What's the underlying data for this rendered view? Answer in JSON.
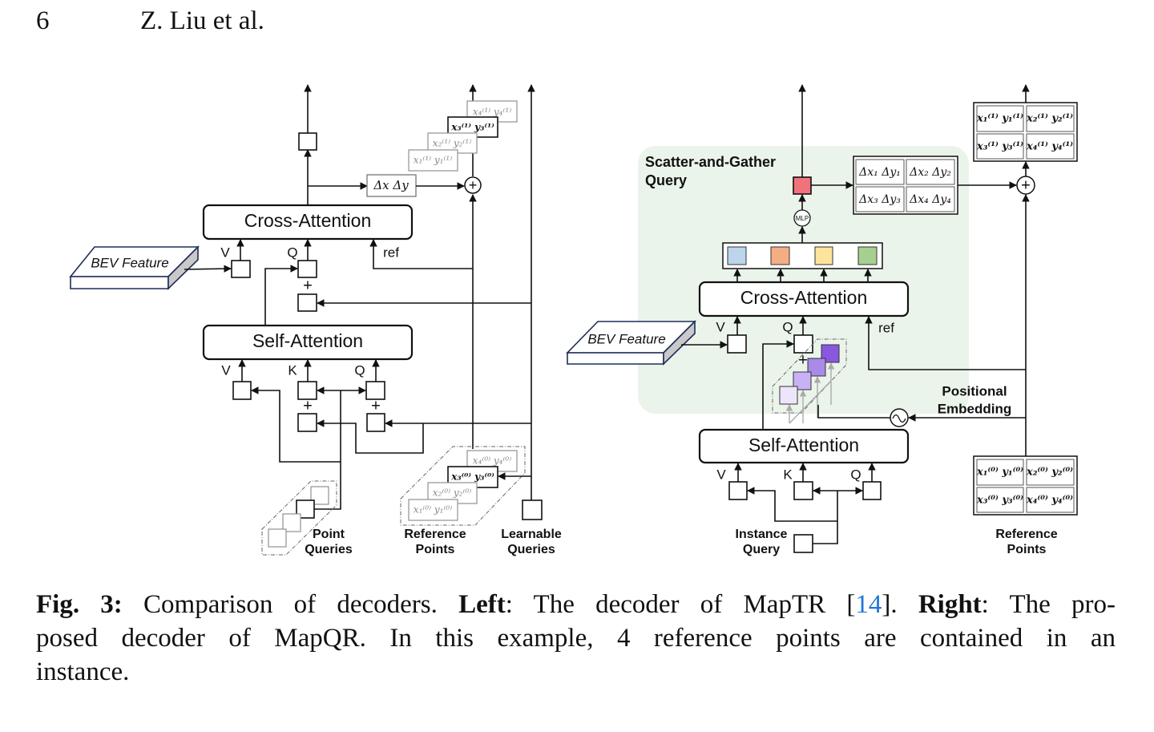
{
  "header": {
    "page_number": "6",
    "running_title": "Z. Liu et al."
  },
  "figure": {
    "left": {
      "cross_attention": "Cross-Attention",
      "self_attention": "Self-Attention",
      "bev_feature": "BEV Feature",
      "v": "V",
      "q": "Q",
      "k": "K",
      "ref": "ref",
      "plus": "+",
      "delta": "Δx  Δy",
      "points_out": [
        "x₁⁽¹⁾ y₁⁽¹⁾",
        "x₂⁽¹⁾ y₂⁽¹⁾",
        "x₃⁽¹⁾ y₃⁽¹⁾",
        "x₄⁽¹⁾ y₄⁽¹⁾"
      ],
      "points_in": [
        "x₁⁽⁰⁾ y₁⁽⁰⁾",
        "x₂⁽⁰⁾ y₂⁽⁰⁾",
        "x₃⁽⁰⁾ y₃⁽⁰⁾",
        "x₄⁽⁰⁾ y₄⁽⁰⁾"
      ],
      "point_queries": [
        "Point",
        "Queries"
      ],
      "reference_points": [
        "Reference",
        "Points"
      ],
      "learnable_queries": [
        "Learnable",
        "Queries"
      ]
    },
    "right": {
      "scatter_gather": [
        "Scatter-and-Gather",
        "Query"
      ],
      "cross_attention": "Cross-Attention",
      "self_attention": "Self-Attention",
      "bev_feature": "BEV Feature",
      "mlp": "MLP",
      "v": "V",
      "q": "Q",
      "k": "K",
      "ref": "ref",
      "plus": "+",
      "deltas": [
        "Δx₁ Δy₁",
        "Δx₂ Δy₂",
        "Δx₃ Δy₃",
        "Δx₄ Δy₄"
      ],
      "points_out": [
        "x₁⁽¹⁾ y₁⁽¹⁾",
        "x₂⁽¹⁾ y₂⁽¹⁾",
        "x₃⁽¹⁾ y₃⁽¹⁾",
        "x₄⁽¹⁾ y₄⁽¹⁾"
      ],
      "points_in": [
        "x₁⁽⁰⁾ y₁⁽⁰⁾",
        "x₂⁽⁰⁾ y₂⁽⁰⁾",
        "x₃⁽⁰⁾ y₃⁽⁰⁾",
        "x₄⁽⁰⁾ y₄⁽⁰⁾"
      ],
      "positional_embedding": [
        "Positional",
        "Embedding"
      ],
      "instance_query": [
        "Instance",
        "Query"
      ],
      "reference_points": [
        "Reference",
        "Points"
      ]
    },
    "colors": {
      "panel_bg": "#ebf4ea",
      "offset_query": "#f2727b",
      "point_features": [
        "#bcd5ec",
        "#f4ae84",
        "#fde49c",
        "#a5d08f"
      ],
      "positional_queries": [
        "#ede5fb",
        "#c8b1f4",
        "#a98ae9",
        "#8a58df"
      ],
      "citation_link": "#1f77d8"
    }
  },
  "caption": {
    "label": "Fig. 3:",
    "t1": " Comparison of decoders. ",
    "left_label": "Left",
    "t2": ": The decoder of MapTR [",
    "citation": "14",
    "t3": "]. ",
    "right_label": "Right",
    "t4": ": The pro-",
    "line2": "posed decoder of MapQR. In this example, 4 reference points are contained in an",
    "line3": "instance."
  }
}
